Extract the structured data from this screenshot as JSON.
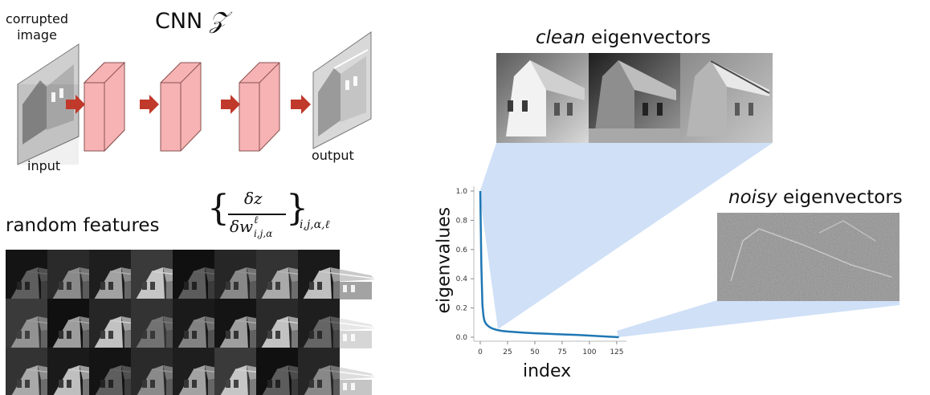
{
  "title": {
    "text": "CNN",
    "symbol": "𝒵"
  },
  "pipeline": {
    "corrupted_label": [
      "corrupted",
      "image"
    ],
    "input_label": "input",
    "output_label": "output"
  },
  "random_features": {
    "label": "random features",
    "formula": {
      "numerator": "δz",
      "denominator": "δw",
      "sup": "ℓ",
      "sub": "i,j,α",
      "outer_sub": "i,j,α,ℓ"
    }
  },
  "clean": {
    "emph": "clean",
    "rest": " eigenvectors"
  },
  "noisy": {
    "emph": "noisy",
    "rest": " eigenvectors"
  },
  "chart_data": {
    "type": "line",
    "xlabel": "index",
    "ylabel": "eigenvalues",
    "xlim": [
      0,
      128
    ],
    "ylim": [
      0.0,
      1.0
    ],
    "xticks": [
      0,
      25,
      50,
      75,
      100,
      125
    ],
    "yticks": [
      0.0,
      0.2,
      0.4,
      0.6,
      0.8,
      1.0
    ],
    "x": [
      0,
      1,
      2,
      3,
      4,
      5,
      6,
      8,
      10,
      12,
      15,
      20,
      25,
      30,
      40,
      50,
      60,
      70,
      80,
      90,
      100,
      110,
      120,
      127
    ],
    "y": [
      1.0,
      0.48,
      0.22,
      0.14,
      0.11,
      0.095,
      0.085,
      0.072,
      0.063,
      0.057,
      0.05,
      0.043,
      0.039,
      0.036,
      0.031,
      0.027,
      0.024,
      0.021,
      0.018,
      0.015,
      0.011,
      0.007,
      0.003,
      0.0
    ],
    "color": "#1f77b4",
    "grid": false
  },
  "colors": {
    "layer_fill": "#f7b3b3",
    "layer_stroke": "#a06060",
    "arrow": "#c0392b",
    "projection": "#cfe0f7"
  }
}
